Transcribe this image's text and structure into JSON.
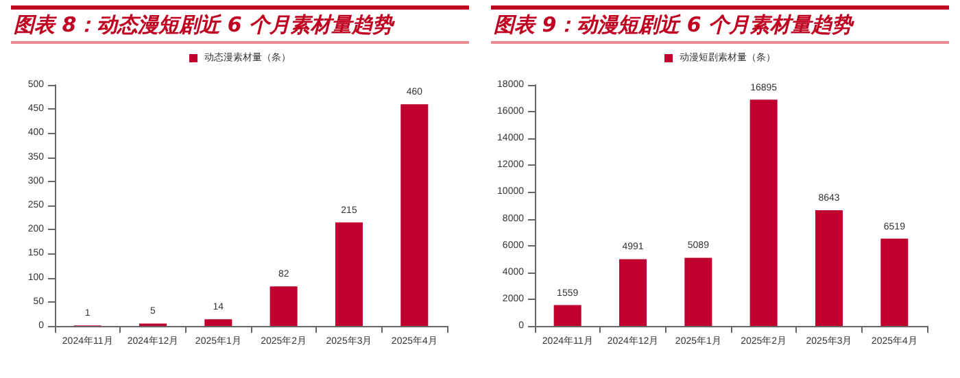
{
  "chart_data": [
    {
      "type": "bar",
      "title": "图表 8：动态漫短剧近 6 个月素材量趋势",
      "categories": [
        "2024年11月",
        "2024年12月",
        "2025年1月",
        "2025年2月",
        "2025年3月",
        "2025年4月"
      ],
      "series": [
        {
          "name": "动态漫素材量（条）",
          "color": "#c0002f",
          "values": [
            1,
            5,
            14,
            82,
            215,
            460
          ]
        }
      ],
      "ylim": [
        0,
        500
      ],
      "yticks": [
        0,
        50,
        100,
        150,
        200,
        250,
        300,
        350,
        400,
        450,
        500
      ],
      "grid": false,
      "legend": "top",
      "data_labels": true
    },
    {
      "type": "bar",
      "title": "图表 9：动漫短剧近 6 个月素材量趋势",
      "categories": [
        "2024年11月",
        "2024年12月",
        "2025年1月",
        "2025年2月",
        "2025年3月",
        "2025年4月"
      ],
      "series": [
        {
          "name": "动漫短剧素材量（条）",
          "color": "#c0002f",
          "values": [
            1559,
            4991,
            5089,
            16895,
            8643,
            6519
          ]
        }
      ],
      "ylim": [
        0,
        18000
      ],
      "yticks": [
        0,
        2000,
        4000,
        6000,
        8000,
        10000,
        12000,
        14000,
        16000,
        18000
      ],
      "grid": false,
      "legend": "top",
      "data_labels": true
    }
  ]
}
